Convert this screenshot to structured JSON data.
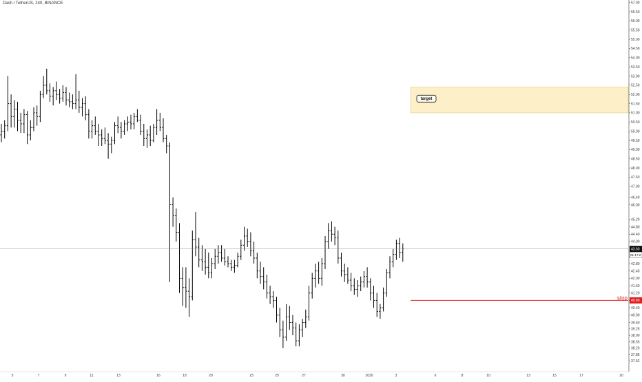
{
  "header": {
    "symbol_title": "Dash / TetherUS, 240, BINANCE"
  },
  "colors": {
    "bars": "#000000",
    "price_line": "#888888",
    "price_badge": "#111111",
    "stop_line": "#e02020",
    "stop_badge": "#e02020",
    "target_fill": "#fdf0c8",
    "target_border": "#e7c878",
    "grid_axis": "#333333"
  },
  "price_badge": {
    "price": "43.60",
    "countdown": "01:17:2"
  },
  "stop": {
    "label": "stop",
    "price": "40.80",
    "value": 40.8
  },
  "target": {
    "label": "target",
    "top": 52.4,
    "bottom": 51.0
  },
  "chart_data": {
    "type": "ohlc",
    "title": "Dash / TetherUS, 240, BINANCE",
    "ylim": [
      37.26,
      57.06
    ],
    "y_ticks": [
      "57.00",
      "56.50",
      "56.00",
      "55.50",
      "55.00",
      "54.50",
      "54.00",
      "53.50",
      "53.00",
      "52.50",
      "52.00",
      "51.50",
      "51.00",
      "50.50",
      "50.00",
      "49.50",
      "49.00",
      "48.50",
      "48.00",
      "47.50",
      "47.00",
      "46.40",
      "46.00",
      "45.20",
      "44.80",
      "44.40",
      "44.00",
      "43.20",
      "42.80",
      "42.40",
      "42.00",
      "41.60",
      "41.20",
      "40.80",
      "40.40",
      "40.00",
      "39.60",
      "39.25",
      "38.90",
      "38.55",
      "38.20",
      "37.86",
      "37.52"
    ],
    "x_ticks": [
      "5",
      "7",
      "9",
      "11",
      "13",
      "16",
      "18",
      "20",
      "23",
      "25",
      "27",
      "30",
      "2020",
      "3",
      "6",
      "8",
      "10",
      "13",
      "15",
      "17",
      "20"
    ],
    "current_price": 43.6,
    "series": [
      {
        "values": [
          [
            49.8,
            50.4,
            49.4,
            50.0
          ],
          [
            50.0,
            50.6,
            49.6,
            50.3
          ],
          [
            50.3,
            53.0,
            50.0,
            51.5
          ],
          [
            51.5,
            52.0,
            50.2,
            50.8
          ],
          [
            50.8,
            51.7,
            50.2,
            51.2
          ],
          [
            51.2,
            51.6,
            50.0,
            50.6
          ],
          [
            50.6,
            51.0,
            49.9,
            50.4
          ],
          [
            50.4,
            51.2,
            49.9,
            50.9
          ],
          [
            50.9,
            51.1,
            49.3,
            49.8
          ],
          [
            49.8,
            50.6,
            49.5,
            50.2
          ],
          [
            50.2,
            51.3,
            50.0,
            51.0
          ],
          [
            51.0,
            51.4,
            50.3,
            50.8
          ],
          [
            50.8,
            52.2,
            50.5,
            52.0
          ],
          [
            52.0,
            53.0,
            51.8,
            52.5
          ],
          [
            52.5,
            53.4,
            52.0,
            52.2
          ],
          [
            52.2,
            52.6,
            51.6,
            51.9
          ],
          [
            51.9,
            52.4,
            51.4,
            52.2
          ],
          [
            52.2,
            52.7,
            51.7,
            52.0
          ],
          [
            52.0,
            52.3,
            51.5,
            51.8
          ],
          [
            51.8,
            52.5,
            51.6,
            52.1
          ],
          [
            52.1,
            52.4,
            51.4,
            51.7
          ],
          [
            51.7,
            52.1,
            51.3,
            51.6
          ],
          [
            51.6,
            52.0,
            51.2,
            51.5
          ],
          [
            51.5,
            53.1,
            51.2,
            51.7
          ],
          [
            51.7,
            52.2,
            51.0,
            51.3
          ],
          [
            51.3,
            51.8,
            50.8,
            51.5
          ],
          [
            51.5,
            51.9,
            50.6,
            50.9
          ],
          [
            50.9,
            51.2,
            49.6,
            50.0
          ],
          [
            50.0,
            50.6,
            49.6,
            50.3
          ],
          [
            50.3,
            50.8,
            49.8,
            50.0
          ],
          [
            50.0,
            50.4,
            49.2,
            49.8
          ],
          [
            49.8,
            50.1,
            49.2,
            49.6
          ],
          [
            49.6,
            50.2,
            49.3,
            49.5
          ],
          [
            49.5,
            49.9,
            48.5,
            49.3
          ],
          [
            49.3,
            49.7,
            48.8,
            49.5
          ],
          [
            49.5,
            50.5,
            49.3,
            50.3
          ],
          [
            50.3,
            50.8,
            49.9,
            50.2
          ],
          [
            50.2,
            50.5,
            49.6,
            50.0
          ],
          [
            50.0,
            50.6,
            49.8,
            50.4
          ],
          [
            50.4,
            50.8,
            50.0,
            50.5
          ],
          [
            50.5,
            50.9,
            50.1,
            50.4
          ],
          [
            50.4,
            51.0,
            50.1,
            50.8
          ],
          [
            50.8,
            51.2,
            50.5,
            50.6
          ],
          [
            50.6,
            50.9,
            49.8,
            50.0
          ],
          [
            50.0,
            50.4,
            49.2,
            49.6
          ],
          [
            49.6,
            50.1,
            49.1,
            49.8
          ],
          [
            49.8,
            50.3,
            49.2,
            49.5
          ],
          [
            49.5,
            50.4,
            49.4,
            50.2
          ],
          [
            50.2,
            51.2,
            49.8,
            50.6
          ],
          [
            50.6,
            51.0,
            50.0,
            50.2
          ],
          [
            50.2,
            50.7,
            49.4,
            49.6
          ],
          [
            49.6,
            49.8,
            48.8,
            49.2
          ],
          [
            49.2,
            49.4,
            41.8,
            46.0
          ],
          [
            46.0,
            46.4,
            44.8,
            45.4
          ],
          [
            45.4,
            45.8,
            44.0,
            44.5
          ],
          [
            44.5,
            45.0,
            41.2,
            42.0
          ],
          [
            42.0,
            42.6,
            40.5,
            41.5
          ],
          [
            41.5,
            42.6,
            40.4,
            41.3
          ],
          [
            41.3,
            42.0,
            39.9,
            41.0
          ],
          [
            41.0,
            44.6,
            40.8,
            44.1
          ],
          [
            44.1,
            45.6,
            43.2,
            43.7
          ],
          [
            43.7,
            44.2,
            42.6,
            43.0
          ],
          [
            43.0,
            43.8,
            42.4,
            42.9
          ],
          [
            42.9,
            43.6,
            42.2,
            42.6
          ],
          [
            42.6,
            43.4,
            42.0,
            42.3
          ],
          [
            42.3,
            43.1,
            42.0,
            42.8
          ],
          [
            42.8,
            43.6,
            42.5,
            43.2
          ],
          [
            43.2,
            43.8,
            42.8,
            43.4
          ],
          [
            43.4,
            43.8,
            42.9,
            43.1
          ],
          [
            43.1,
            43.6,
            42.7,
            42.9
          ],
          [
            42.9,
            43.2,
            42.6,
            42.8
          ],
          [
            42.8,
            43.0,
            42.4,
            42.6
          ],
          [
            42.6,
            43.0,
            42.3,
            42.7
          ],
          [
            42.7,
            43.4,
            42.6,
            43.2
          ],
          [
            43.2,
            44.1,
            43.0,
            43.8
          ],
          [
            43.8,
            44.8,
            43.5,
            44.3
          ],
          [
            44.3,
            44.7,
            43.7,
            44.0
          ],
          [
            44.0,
            44.5,
            43.2,
            43.5
          ],
          [
            43.5,
            44.0,
            42.8,
            43.1
          ],
          [
            43.1,
            43.4,
            42.0,
            42.4
          ],
          [
            42.4,
            42.9,
            41.7,
            42.1
          ],
          [
            42.1,
            42.6,
            41.4,
            41.8
          ],
          [
            41.8,
            42.2,
            40.9,
            41.2
          ],
          [
            41.2,
            41.6,
            40.6,
            41.0
          ],
          [
            41.0,
            41.3,
            40.4,
            40.8
          ],
          [
            40.8,
            41.0,
            39.6,
            40.0
          ],
          [
            40.0,
            40.4,
            38.8,
            39.2
          ],
          [
            39.2,
            39.7,
            38.2,
            38.8
          ],
          [
            38.8,
            40.6,
            38.6,
            39.9
          ],
          [
            39.9,
            40.5,
            39.2,
            39.6
          ],
          [
            39.6,
            40.0,
            38.9,
            39.3
          ],
          [
            39.3,
            39.6,
            38.3,
            38.6
          ],
          [
            38.6,
            39.5,
            38.3,
            39.2
          ],
          [
            39.2,
            39.8,
            38.8,
            39.6
          ],
          [
            39.6,
            40.3,
            39.3,
            39.9
          ],
          [
            39.9,
            41.6,
            39.7,
            41.2
          ],
          [
            41.2,
            42.3,
            40.9,
            42.0
          ],
          [
            42.0,
            42.8,
            41.5,
            42.4
          ],
          [
            42.4,
            42.9,
            41.7,
            42.0
          ],
          [
            42.0,
            43.1,
            41.6,
            42.8
          ],
          [
            42.8,
            44.3,
            42.5,
            44.0
          ],
          [
            44.0,
            45.0,
            43.6,
            44.6
          ],
          [
            44.6,
            45.1,
            44.0,
            44.4
          ],
          [
            44.4,
            44.8,
            43.8,
            44.2
          ],
          [
            44.2,
            44.6,
            42.8,
            43.1
          ],
          [
            43.1,
            43.4,
            42.1,
            42.4
          ],
          [
            42.4,
            42.8,
            41.8,
            42.2
          ],
          [
            42.2,
            42.6,
            41.7,
            41.9
          ],
          [
            41.9,
            42.3,
            41.3,
            41.6
          ],
          [
            41.6,
            42.0,
            41.1,
            41.4
          ],
          [
            41.4,
            41.9,
            41.0,
            41.6
          ],
          [
            41.6,
            42.1,
            41.3,
            41.8
          ],
          [
            41.8,
            42.4,
            41.5,
            42.1
          ],
          [
            42.1,
            42.6,
            41.5,
            41.8
          ],
          [
            41.8,
            42.0,
            40.8,
            41.2
          ],
          [
            41.2,
            41.6,
            40.4,
            40.8
          ],
          [
            40.8,
            41.2,
            39.9,
            40.2
          ],
          [
            40.2,
            40.6,
            39.8,
            40.4
          ],
          [
            40.4,
            41.5,
            40.2,
            41.2
          ],
          [
            41.2,
            42.5,
            41.0,
            42.3
          ],
          [
            42.3,
            43.2,
            42.0,
            42.9
          ],
          [
            42.9,
            43.6,
            42.6,
            43.3
          ],
          [
            43.3,
            44.1,
            43.0,
            43.9
          ],
          [
            43.9,
            44.2,
            43.1,
            43.4
          ],
          [
            43.4,
            43.9,
            42.9,
            43.6
          ]
        ]
      }
    ]
  }
}
